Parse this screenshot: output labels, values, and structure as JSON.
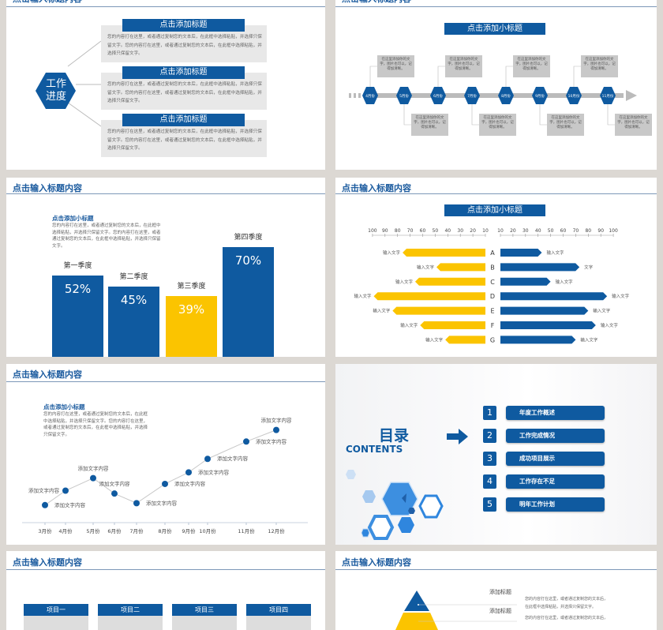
{
  "slide_title": "点击输入标题内容",
  "colors": {
    "blue": "#0f5aa0",
    "yellow": "#fbc400",
    "gray_bg": "#dcd8d3",
    "title_blue": "#1a5a9e"
  },
  "progress_slide": {
    "hex_label_1": "工作",
    "hex_label_2": "进度",
    "items": [
      {
        "title": "点击添加标题",
        "text": "您的内容打在这里，或者通过复制您的文本后，在此框中选择粘贴，并选择只保留文字。您的内容打在这里，或者通过复制您的文本后，在此框中选择粘贴，并选择只保留文字。"
      },
      {
        "title": "点击添加标题",
        "text": "您的内容打在这里，或者通过复制您的文本后，在此框中选择粘贴，并选择只保留文字。您的内容打在这里，或者通过复制您的文本后，在此框中选择粘贴，并选择只保留文字。"
      },
      {
        "title": "点击添加标题",
        "text": "您的内容打在这里，或者通过复制您的文本后，在此框中选择粘贴，并选择只保留文字。您的内容打在这里，或者通过复制您的文本后，在此框中选择粘贴，并选择只保留文字。"
      }
    ]
  },
  "timeline_slide": {
    "subtitle": "点击添加小标题",
    "months": [
      "4月份",
      "5月份",
      "6月份",
      "7月份",
      "8月份",
      "9月份",
      "10月份",
      "11月份"
    ],
    "callout_text": "在这里添加你的文字，图片也可以，记得加清晰。"
  },
  "quarter_slide": {
    "subtitle": "点击添加小标题",
    "text": "您的内容打在这里，或者通过复制您的文本后，在此框中选择粘贴，并选择只保留文字。您的内容打在这里，或者通过复制您的文本后，在此框中选择粘贴，并选择只保留文字。"
  },
  "compare_slide": {
    "subtitle": "点击添加小标题"
  },
  "line_slide": {
    "subtitle": "点击添加小标题",
    "text": "您的内容打在这里，或者通过复制您的文本后，在此框中选择粘贴，并选择只保留文字。您的内容打在这里，或者通过复制您的文本后，在此框中选择粘贴，并选择只保留文字。"
  },
  "contents_slide": {
    "title_cn": "目录",
    "title_en": "CONTENTS",
    "items": [
      {
        "num": "1",
        "label": "年度工作概述"
      },
      {
        "num": "2",
        "label": "工作完成情况"
      },
      {
        "num": "3",
        "label": "成功项目展示"
      },
      {
        "num": "4",
        "label": "工作存在不足"
      },
      {
        "num": "5",
        "label": "明年工作计划"
      }
    ]
  },
  "projects_slide": {
    "items": [
      "项目一",
      "项目二",
      "项目三",
      "项目四"
    ]
  },
  "pyramid_slide": {
    "items": [
      {
        "title": "添加标题",
        "text1": "您的内容打在这里，或者通过复制您的文本后，",
        "text2": "在此框中选择粘贴，并选择只保留文字。"
      },
      {
        "title": "添加标题",
        "text1": "您的内容打在这里，或者通过复制您的文本后，",
        "text2": ""
      }
    ]
  },
  "chart_data": [
    {
      "type": "bar",
      "categories": [
        "第一季度",
        "第二季度",
        "第三季度",
        "第四季度"
      ],
      "values": [
        52,
        45,
        39,
        70
      ],
      "data_labels": [
        "52%",
        "45%",
        "39%",
        "70%"
      ],
      "colors": [
        "#0f5aa0",
        "#0f5aa0",
        "#fbc400",
        "#0f5aa0"
      ]
    },
    {
      "type": "bar",
      "orientation": "horizontal-butterfly",
      "categories": [
        "A",
        "B",
        "C",
        "D",
        "E",
        "F",
        "G"
      ],
      "left_ticks": [
        100,
        90,
        80,
        70,
        60,
        50,
        40,
        30,
        20,
        10
      ],
      "right_ticks": [
        10,
        20,
        30,
        40,
        50,
        60,
        70,
        80,
        90,
        100
      ],
      "series": [
        {
          "color": "#fbc400",
          "values": [
            76,
            49,
            66,
            99,
            84,
            62,
            42
          ],
          "labels": [
            "输入文字",
            "输入文字",
            "输入文字",
            "输入文字",
            "输入文字",
            "输入文字",
            "输入文字"
          ]
        },
        {
          "color": "#0f5aa0",
          "values": [
            43,
            73,
            50,
            95,
            80,
            86,
            70
          ],
          "labels": [
            "输入文字",
            "文字",
            "输入文字",
            "输入文字",
            "输入文字",
            "输入文字",
            "输入文字"
          ]
        }
      ]
    },
    {
      "type": "line",
      "categories": [
        "3月份",
        "4月份",
        "5月份",
        "6月份",
        "7月份",
        "8月份",
        "9月份",
        "10月份",
        "11月份",
        "12月份"
      ],
      "values": [
        10,
        25,
        38,
        22,
        12,
        32,
        44,
        58,
        76,
        88
      ],
      "point_label": "添加文字内容",
      "grid": false
    }
  ]
}
